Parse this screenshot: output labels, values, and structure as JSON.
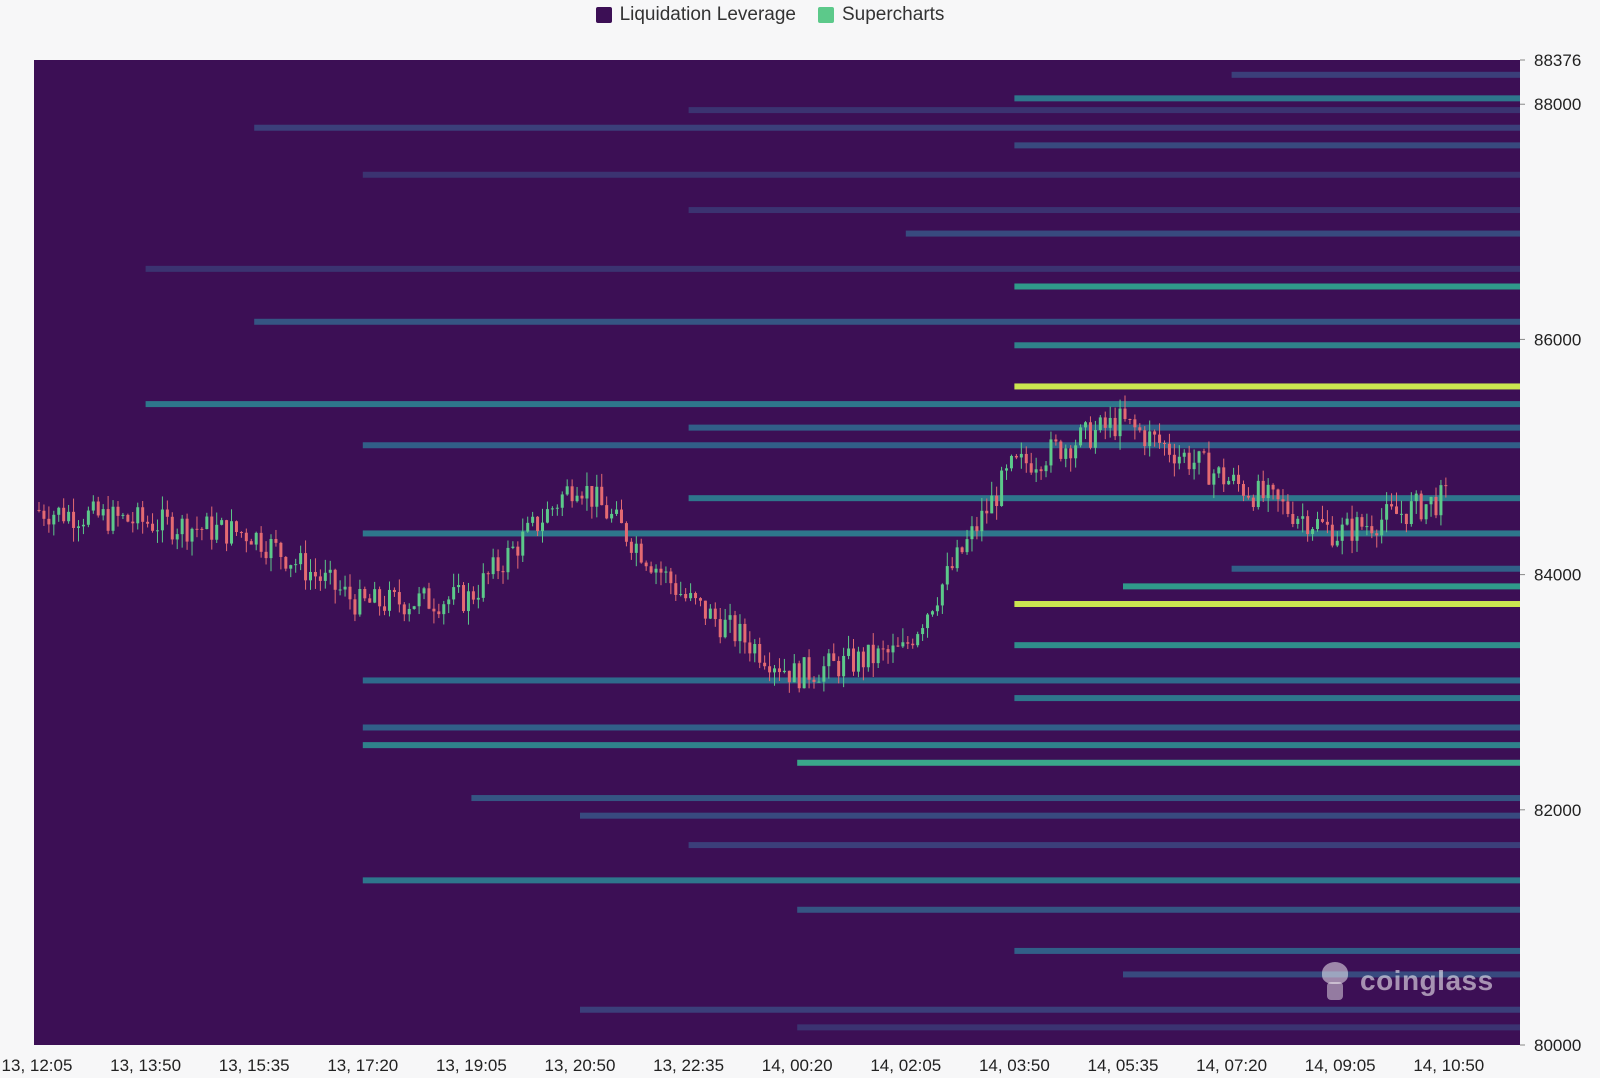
{
  "legend": [
    {
      "label": "Liquidation Leverage",
      "color": "#3c0f55"
    },
    {
      "label": "Supercharts",
      "color": "#5cc98a"
    }
  ],
  "watermark": "coinglass",
  "chart_data": {
    "type": "heatmap",
    "title": "",
    "y_axis": {
      "min": 80000,
      "max": 88376,
      "ticks": [
        88376,
        88000,
        86000,
        84000,
        82000,
        80000
      ],
      "position": "right"
    },
    "x_axis": {
      "ticks": [
        "13, 12:05",
        "13, 13:50",
        "13, 15:35",
        "13, 17:20",
        "13, 19:05",
        "13, 20:50",
        "13, 22:35",
        "14, 00:20",
        "14, 02:05",
        "14, 03:50",
        "14, 05:35",
        "14, 07:20",
        "14, 09:05",
        "14, 10:50"
      ]
    },
    "background_color": "#3c0f55",
    "color_scale": [
      "#3c0f55",
      "#3b3f7a",
      "#2e6a8c",
      "#2f9a8a",
      "#5cc98a",
      "#f0f03c"
    ],
    "liquidation_bands": [
      {
        "price": 88250,
        "start": "14, 07:20",
        "intensity": 0.2
      },
      {
        "price": 88050,
        "start": "14, 03:50",
        "intensity": 0.45
      },
      {
        "price": 87950,
        "start": "13, 22:35",
        "intensity": 0.15
      },
      {
        "price": 87800,
        "start": "13, 15:35",
        "intensity": 0.2
      },
      {
        "price": 87650,
        "start": "14, 03:50",
        "intensity": 0.25
      },
      {
        "price": 87400,
        "start": "13, 17:20",
        "intensity": 0.15
      },
      {
        "price": 87100,
        "start": "13, 22:35",
        "intensity": 0.15
      },
      {
        "price": 86900,
        "start": "14, 02:05",
        "intensity": 0.25
      },
      {
        "price": 86600,
        "start": "13, 13:50",
        "intensity": 0.15
      },
      {
        "price": 86450,
        "start": "14, 03:50",
        "intensity": 0.6
      },
      {
        "price": 86150,
        "start": "13, 15:35",
        "intensity": 0.3
      },
      {
        "price": 85950,
        "start": "14, 03:50",
        "intensity": 0.5
      },
      {
        "price": 85600,
        "start": "14, 03:50",
        "intensity": 0.95
      },
      {
        "price": 85450,
        "start": "13, 13:50",
        "intensity": 0.45
      },
      {
        "price": 85250,
        "start": "13, 22:35",
        "intensity": 0.35
      },
      {
        "price": 85100,
        "start": "13, 17:20",
        "intensity": 0.35
      },
      {
        "price": 84650,
        "start": "13, 22:35",
        "intensity": 0.45
      },
      {
        "price": 84350,
        "start": "13, 17:20",
        "intensity": 0.45
      },
      {
        "price": 84050,
        "start": "14, 07:20",
        "intensity": 0.35
      },
      {
        "price": 83900,
        "start": "14, 05:35",
        "intensity": 0.6
      },
      {
        "price": 83750,
        "start": "14, 03:50",
        "intensity": 0.95
      },
      {
        "price": 83400,
        "start": "14, 03:50",
        "intensity": 0.55
      },
      {
        "price": 83100,
        "start": "13, 17:20",
        "intensity": 0.4
      },
      {
        "price": 82950,
        "start": "14, 03:50",
        "intensity": 0.45
      },
      {
        "price": 82700,
        "start": "13, 17:20",
        "intensity": 0.35
      },
      {
        "price": 82550,
        "start": "13, 17:20",
        "intensity": 0.5
      },
      {
        "price": 82400,
        "start": "14, 00:20",
        "intensity": 0.65
      },
      {
        "price": 82100,
        "start": "13, 19:05",
        "intensity": 0.3
      },
      {
        "price": 81950,
        "start": "13, 20:50",
        "intensity": 0.25
      },
      {
        "price": 81700,
        "start": "13, 22:35",
        "intensity": 0.2
      },
      {
        "price": 81400,
        "start": "13, 17:20",
        "intensity": 0.45
      },
      {
        "price": 81150,
        "start": "14, 00:20",
        "intensity": 0.3
      },
      {
        "price": 80800,
        "start": "14, 03:50",
        "intensity": 0.35
      },
      {
        "price": 80600,
        "start": "14, 05:35",
        "intensity": 0.25
      },
      {
        "price": 80300,
        "start": "13, 20:50",
        "intensity": 0.2
      },
      {
        "price": 80150,
        "start": "14, 00:20",
        "intensity": 0.15
      }
    ],
    "price_series": {
      "name": "",
      "up_color": "#5cc98a",
      "down_color": "#e46a72",
      "points": [
        {
          "time": "13, 12:05",
          "close": 84550
        },
        {
          "time": "13, 13:50",
          "close": 84450
        },
        {
          "time": "13, 15:35",
          "close": 84350
        },
        {
          "time": "13, 17:20",
          "close": 83750
        },
        {
          "time": "13, 19:05",
          "close": 83800
        },
        {
          "time": "13, 20:50",
          "close": 84800
        },
        {
          "time": "13, 22:35",
          "close": 83800
        },
        {
          "time": "14, 00:20",
          "close": 83150
        },
        {
          "time": "14, 02:05",
          "close": 83350
        },
        {
          "time": "14, 03:50",
          "close": 84900
        },
        {
          "time": "14, 05:35",
          "close": 85300
        },
        {
          "time": "14, 07:20",
          "close": 84800
        },
        {
          "time": "14, 09:05",
          "close": 84350
        },
        {
          "time": "14, 10:50",
          "close": 84650
        }
      ]
    }
  }
}
